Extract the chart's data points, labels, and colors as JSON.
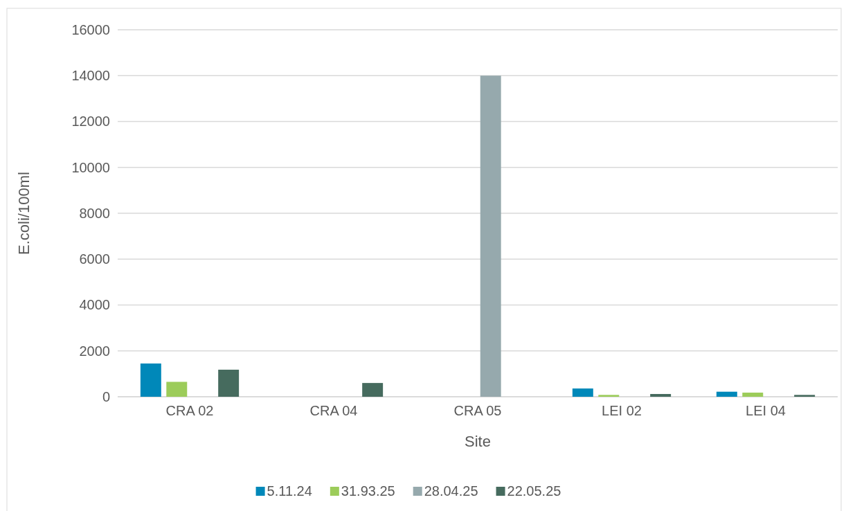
{
  "chart_data": {
    "type": "bar",
    "xlabel": "Site",
    "ylabel": "E.coli/100ml",
    "categories": [
      "CRA 02",
      "CRA 04",
      "CRA 05",
      "LEI 02",
      "LEI 04"
    ],
    "series": [
      {
        "name": "5.11.24",
        "color": "#0088b9",
        "values": [
          1450,
          null,
          null,
          360,
          220
        ]
      },
      {
        "name": "31.93.25",
        "color": "#9ccc5a",
        "values": [
          650,
          null,
          null,
          80,
          180
        ]
      },
      {
        "name": "28.04.25",
        "color": "#96a9ad",
        "values": [
          null,
          null,
          14000,
          null,
          null
        ]
      },
      {
        "name": "22.05.25",
        "color": "#466b5e",
        "values": [
          1180,
          600,
          null,
          120,
          80
        ]
      }
    ],
    "ylim": [
      0,
      16000
    ],
    "yticks": [
      0,
      2000,
      4000,
      6000,
      8000,
      10000,
      12000,
      14000,
      16000
    ],
    "grid": "y",
    "legend": "bottom"
  }
}
